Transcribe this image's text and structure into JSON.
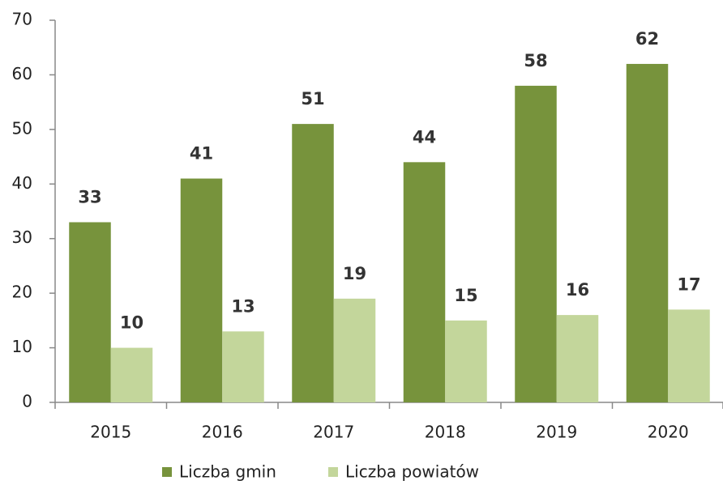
{
  "chart_data": {
    "type": "bar",
    "categories": [
      "2015",
      "2016",
      "2017",
      "2018",
      "2019",
      "2020"
    ],
    "series": [
      {
        "name": "Liczba gmin",
        "color": "#77933c",
        "values": [
          33,
          41,
          51,
          44,
          58,
          62
        ]
      },
      {
        "name": "Liczba powiatów",
        "color": "#c3d69b",
        "values": [
          10,
          13,
          19,
          15,
          16,
          17
        ]
      }
    ],
    "ylim": [
      0,
      70
    ],
    "yticks": [
      0,
      10,
      20,
      30,
      40,
      50,
      60,
      70
    ],
    "grid": false,
    "legend": "bottom"
  }
}
